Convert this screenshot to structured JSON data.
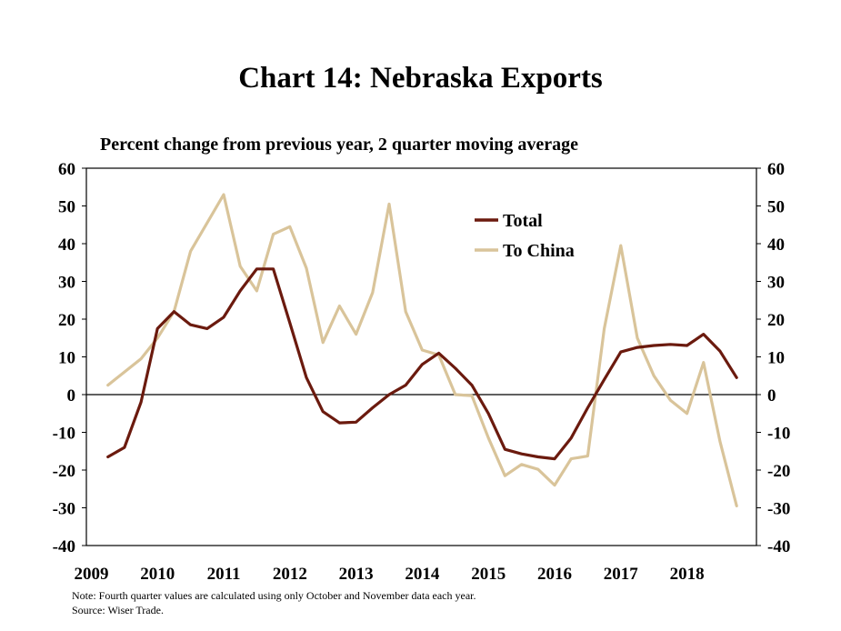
{
  "chart_data": {
    "type": "line",
    "title": "Chart 14: Nebraska Exports",
    "subtitle": "Percent change from previous year, 2 quarter moving average",
    "ylim": [
      -40,
      60
    ],
    "y_ticks": [
      60,
      50,
      40,
      30,
      20,
      10,
      0,
      -10,
      -20,
      -30,
      -40
    ],
    "x_ticks": [
      "2009",
      "2010",
      "2011",
      "2012",
      "2013",
      "2014",
      "2015",
      "2016",
      "2017",
      "2018"
    ],
    "legend_position": "top-right",
    "grid": false,
    "dual_axis": true,
    "x": [
      "2009Q2",
      "2009Q3",
      "2009Q4",
      "2010Q1",
      "2010Q2",
      "2010Q3",
      "2010Q4",
      "2011Q1",
      "2011Q2",
      "2011Q3",
      "2011Q4",
      "2012Q1",
      "2012Q2",
      "2012Q3",
      "2012Q4",
      "2013Q1",
      "2013Q2",
      "2013Q3",
      "2013Q4",
      "2014Q1",
      "2014Q2",
      "2014Q3",
      "2014Q4",
      "2015Q1",
      "2015Q2",
      "2015Q3",
      "2015Q4",
      "2016Q1",
      "2016Q2",
      "2016Q3",
      "2016Q4",
      "2017Q1",
      "2017Q2",
      "2017Q3",
      "2017Q4",
      "2018Q1",
      "2018Q2",
      "2018Q3",
      "2018Q4"
    ],
    "series": [
      {
        "name": "Total",
        "color": "#6b1a0e",
        "values": [
          -16.5,
          -14.0,
          -2.0,
          17.5,
          22.0,
          18.5,
          17.5,
          20.5,
          27.5,
          33.3,
          33.3,
          19.0,
          4.5,
          -4.5,
          -7.5,
          -7.3,
          -3.5,
          0.0,
          2.5,
          8.0,
          11.0,
          7.0,
          2.5,
          -5.0,
          -14.5,
          -15.7,
          -16.5,
          -17.0,
          -11.5,
          -3.5,
          4.0,
          11.3,
          12.5,
          13.0,
          13.3,
          13.0,
          16.0,
          11.5,
          4.5
        ]
      },
      {
        "name": "To China",
        "color": "#d9c49a",
        "values": [
          2.5,
          6.0,
          9.5,
          15.0,
          22.0,
          38.0,
          45.5,
          53.0,
          34.0,
          27.5,
          42.5,
          44.5,
          33.5,
          13.8,
          23.5,
          16.0,
          27.0,
          50.5,
          22.0,
          11.8,
          10.5,
          0.0,
          -0.3,
          -11.5,
          -21.5,
          -18.5,
          -19.8,
          -24.0,
          -17.0,
          -16.3,
          17.5,
          39.5,
          15.0,
          5.0,
          -1.5,
          -5.0,
          8.5,
          -12.5,
          -29.5
        ]
      }
    ]
  },
  "notes": {
    "note": "Note: Fourth quarter values are calculated using only October and November data each year.",
    "source": "Source: Wiser Trade."
  }
}
